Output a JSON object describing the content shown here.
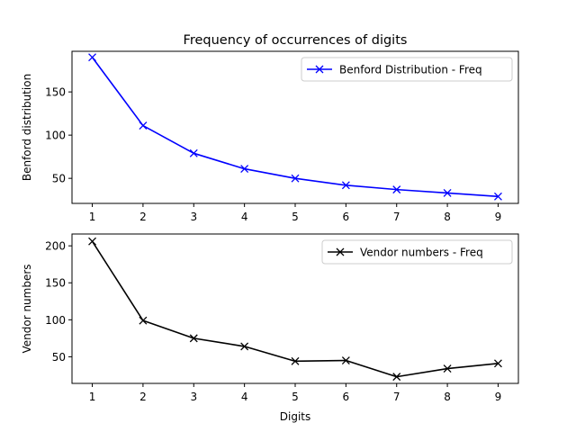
{
  "chart_data": [
    {
      "type": "line",
      "title": "Frequency of occurrences of digits",
      "xlabel": "",
      "ylabel": "Benford distribution",
      "x": [
        1,
        2,
        3,
        4,
        5,
        6,
        7,
        8,
        9
      ],
      "xlim": [
        0.6,
        9.4
      ],
      "ylim": [
        21,
        197
      ],
      "yticks": [
        50,
        100,
        150
      ],
      "grid": false,
      "legend_position": "upper right",
      "marker": "x",
      "series": [
        {
          "name": "Benford Distribution - Freq",
          "color": "#0000ff",
          "values": [
            190,
            111,
            79,
            61,
            50,
            42,
            37,
            33,
            29
          ]
        }
      ]
    },
    {
      "type": "line",
      "title": "",
      "xlabel": "Digits",
      "ylabel": "Vendor numbers",
      "x": [
        1,
        2,
        3,
        4,
        5,
        6,
        7,
        8,
        9
      ],
      "xlim": [
        0.6,
        9.4
      ],
      "ylim": [
        14,
        216
      ],
      "yticks": [
        50,
        100,
        150,
        200
      ],
      "grid": false,
      "legend_position": "upper right",
      "marker": "x",
      "series": [
        {
          "name": "Vendor numbers - Freq",
          "color": "#000000",
          "values": [
            206,
            99,
            75,
            64,
            44,
            45,
            23,
            34,
            41
          ]
        }
      ]
    }
  ]
}
